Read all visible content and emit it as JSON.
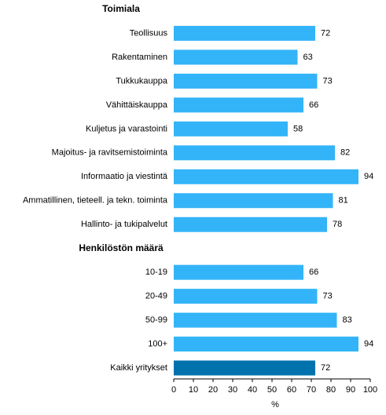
{
  "chart_data": {
    "type": "bar",
    "orientation": "horizontal",
    "groups": [
      {
        "name": "Toimiala",
        "categories": [
          "Teollisuus",
          "Rakentaminen",
          "Tukkukauppa",
          "Vähittäiskauppa",
          "Kuljetus ja varastointi",
          "Majoitus- ja ravitsemistoiminta",
          "Informaatio ja viestintä",
          "Ammatillinen, tieteell. ja tekn. toiminta",
          "Hallinto- ja tukipalvelut"
        ],
        "values": [
          72,
          63,
          73,
          66,
          58,
          82,
          94,
          81,
          78
        ]
      },
      {
        "name": "Henkilöstön määrä",
        "categories": [
          "10-19",
          "20-49",
          "50-99",
          "100+"
        ],
        "values": [
          66,
          73,
          83,
          94
        ]
      }
    ],
    "color": "#33b4f8",
    "total": {
      "category": "Kaikki yritykset",
      "value": 72,
      "color": "#0072ae"
    },
    "xlabel": "%",
    "xlim": [
      0,
      100
    ],
    "xticks": [
      0,
      10,
      20,
      30,
      40,
      50,
      60,
      70,
      80,
      90,
      100
    ]
  }
}
